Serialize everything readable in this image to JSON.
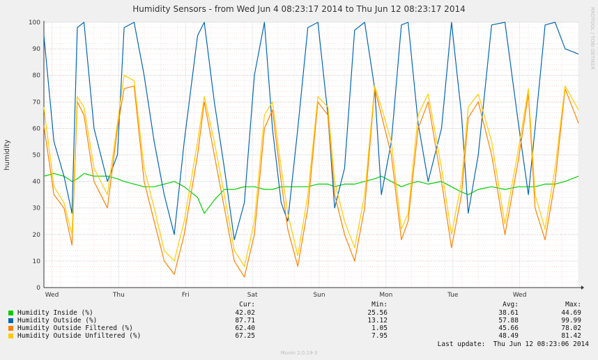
{
  "colors": {
    "inside": "#00cc00",
    "outside": "#0066b3",
    "filtered": "#ff8000",
    "unfiltered": "#ffcc00",
    "background": "#f0f0f0",
    "plot_bg": "#ffffff",
    "grid_minor": "#f0c8c8",
    "grid_major": "#d0d0d0"
  },
  "chart_data": {
    "type": "line",
    "title": "Humidity Sensors - from Wed Jun  4 08:23:17 2014 to Thu Jun 12 08:23:17 2014",
    "xlabel": "",
    "ylabel": "humidity",
    "ylim": [
      0,
      100
    ],
    "yticks": [
      0,
      10,
      20,
      30,
      40,
      50,
      60,
      70,
      80,
      90,
      100
    ],
    "xlim": [
      0,
      8
    ],
    "x_unit": "days since start",
    "xticks": [
      {
        "label": "Wed",
        "x": 0.12
      },
      {
        "label": "Thu",
        "x": 1.12
      },
      {
        "label": "Fri",
        "x": 2.12
      },
      {
        "label": "Sat",
        "x": 3.12
      },
      {
        "label": "Sun",
        "x": 4.12
      },
      {
        "label": "Mon",
        "x": 5.12
      },
      {
        "label": "Tue",
        "x": 6.12
      },
      {
        "label": "Wed",
        "x": 7.12
      }
    ],
    "grid": true,
    "x": [
      0.0,
      0.15,
      0.3,
      0.42,
      0.5,
      0.6,
      0.75,
      0.95,
      1.1,
      1.2,
      1.35,
      1.5,
      1.65,
      1.8,
      1.95,
      2.1,
      2.3,
      2.4,
      2.55,
      2.7,
      2.85,
      3.0,
      3.15,
      3.3,
      3.42,
      3.55,
      3.65,
      3.8,
      3.95,
      4.1,
      4.25,
      4.35,
      4.5,
      4.65,
      4.8,
      4.95,
      5.05,
      5.2,
      5.35,
      5.45,
      5.6,
      5.75,
      5.95,
      6.1,
      6.25,
      6.35,
      6.5,
      6.7,
      6.9,
      7.1,
      7.25,
      7.35,
      7.5,
      7.65,
      7.8,
      8.0
    ],
    "series": [
      {
        "name": "Humidity Inside (%)",
        "color_key": "inside",
        "values": [
          42,
          43,
          42,
          40,
          41,
          43,
          42,
          42,
          41,
          40,
          39,
          38,
          38,
          39,
          40,
          38,
          34,
          28,
          33,
          37,
          37,
          38,
          38,
          37,
          37,
          38,
          38,
          38,
          38,
          39,
          39,
          38,
          39,
          39,
          40,
          41,
          42,
          40,
          38,
          39,
          40,
          39,
          40,
          38,
          36,
          35,
          37,
          38,
          37,
          38,
          38,
          38,
          39,
          39,
          40,
          42
        ]
      },
      {
        "name": "Humidity Outside (%)",
        "color_key": "outside",
        "values": [
          95,
          55,
          42,
          28,
          98,
          100,
          60,
          40,
          50,
          98,
          100,
          80,
          55,
          35,
          20,
          55,
          95,
          100,
          70,
          45,
          18,
          32,
          80,
          100,
          60,
          32,
          25,
          60,
          98,
          100,
          65,
          30,
          45,
          97,
          100,
          75,
          35,
          55,
          99,
          100,
          62,
          40,
          60,
          100,
          65,
          28,
          50,
          99,
          100,
          62,
          35,
          60,
          99,
          100,
          90,
          88
        ]
      },
      {
        "name": "Humidity Outside Filtered (%)",
        "color_key": "filtered",
        "values": [
          61,
          35,
          30,
          16,
          70,
          65,
          40,
          30,
          60,
          75,
          76,
          40,
          25,
          10,
          5,
          20,
          50,
          70,
          50,
          30,
          10,
          4,
          20,
          60,
          67,
          40,
          22,
          8,
          30,
          70,
          65,
          35,
          20,
          10,
          30,
          75,
          65,
          50,
          18,
          25,
          60,
          70,
          40,
          15,
          35,
          64,
          70,
          50,
          20,
          48,
          73,
          30,
          18,
          40,
          75,
          62
        ]
      },
      {
        "name": "Humidity Outside Unfiltered (%)",
        "color_key": "unfiltered",
        "values": [
          68,
          38,
          32,
          20,
          72,
          68,
          45,
          35,
          62,
          80,
          78,
          45,
          30,
          14,
          10,
          25,
          55,
          72,
          55,
          35,
          14,
          8,
          25,
          65,
          70,
          45,
          28,
          12,
          35,
          72,
          68,
          40,
          25,
          15,
          35,
          76,
          68,
          55,
          22,
          28,
          65,
          73,
          45,
          20,
          40,
          68,
          73,
          55,
          24,
          52,
          75,
          35,
          22,
          45,
          76,
          67
        ]
      }
    ],
    "legend": {
      "headers": [
        "Cur:",
        "Min:",
        "Avg:",
        "Max:"
      ],
      "rows": [
        {
          "name": "Humidity Inside (%)",
          "color_key": "inside",
          "cur": "42.02",
          "min": "25.56",
          "avg": "38.61",
          "max": "44.69"
        },
        {
          "name": "Humidity Outside (%)",
          "color_key": "outside",
          "cur": "87.71",
          "min": "13.12",
          "avg": "57.88",
          "max": "99.99"
        },
        {
          "name": "Humidity Outside Filtered (%)",
          "color_key": "filtered",
          "cur": "62.40",
          "min": "1.05",
          "avg": "45.66",
          "max": "78.02"
        },
        {
          "name": "Humidity Outside Unfiltered (%)",
          "color_key": "unfiltered",
          "cur": "67.25",
          "min": "7.95",
          "avg": "48.49",
          "max": "81.42"
        }
      ],
      "placement": "bottom"
    },
    "last_update": "Last update:  Thu Jun 12 08:23:06 2014",
    "watermark": "RRDTOOL / TOBI OETIKER",
    "footer": "Munin 2.0.19-3"
  }
}
